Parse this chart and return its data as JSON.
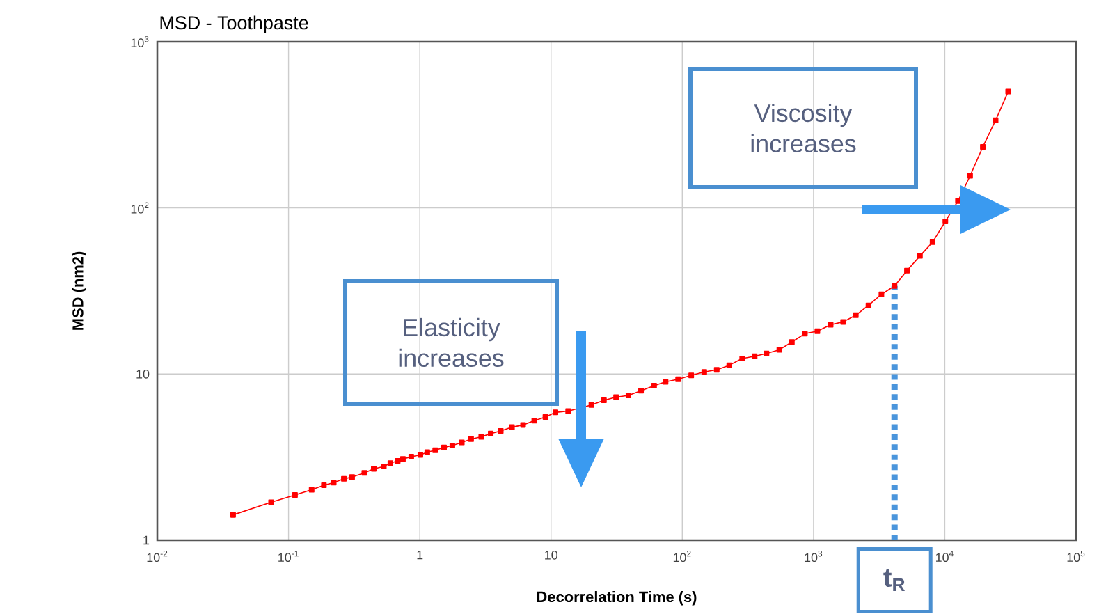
{
  "chart_data": {
    "type": "line",
    "title": "MSD - Toothpaste",
    "xlabel": "Decorrelation Time (s)",
    "ylabel": "MSD (nm2)",
    "log": "xy",
    "grid": true,
    "marker": "square",
    "line_style": "solid",
    "xlim": [
      0.01,
      100000
    ],
    "ylim": [
      1,
      1000
    ],
    "xticks": [
      {
        "value": 0.01,
        "label": "10$^{-2}$"
      },
      {
        "value": 0.1,
        "label": "10$^{-1}$"
      },
      1,
      10,
      {
        "value": 100,
        "label": "10$^{2}$"
      },
      {
        "value": 1000,
        "label": "10$^{3}$"
      },
      {
        "value": 10000,
        "label": "10$^{4}$"
      },
      {
        "value": 100000,
        "label": "10$^{5}$"
      }
    ],
    "yticks": [
      1,
      10,
      {
        "value": 100,
        "label": "10$^{2}$"
      },
      {
        "value": 1000,
        "label": "10$^{3}$"
      }
    ],
    "series": [
      {
        "color": "#ff0000",
        "x": [
          0.0378,
          0.0736,
          0.112,
          0.15,
          0.186,
          0.221,
          0.264,
          0.305,
          0.378,
          0.446,
          0.532,
          0.597,
          0.679,
          0.744,
          0.861,
          1.01,
          1.14,
          1.31,
          1.53,
          1.77,
          2.09,
          2.46,
          2.94,
          3.47,
          4.14,
          5.04,
          6.12,
          7.45,
          9.06,
          10.8,
          13.5,
          20.3,
          25.3,
          31.3,
          38.9,
          48.5,
          61.0,
          74.6,
          92.9,
          117,
          147,
          183,
          228,
          286,
          356,
          438,
          549,
          684,
          859,
          1070,
          1350,
          1680,
          2100,
          2620,
          3290,
          4140,
          5150,
          6470,
          8070,
          10100,
          12600,
          15600,
          19500,
          24400,
          30400
        ],
        "values": [
          1.42,
          1.69,
          1.87,
          2.01,
          2.14,
          2.22,
          2.34,
          2.4,
          2.54,
          2.69,
          2.78,
          2.91,
          3.0,
          3.08,
          3.18,
          3.26,
          3.39,
          3.48,
          3.62,
          3.71,
          3.88,
          4.06,
          4.19,
          4.38,
          4.55,
          4.79,
          4.94,
          5.24,
          5.52,
          5.88,
          5.99,
          6.51,
          6.95,
          7.26,
          7.44,
          7.94,
          8.51,
          8.97,
          9.31,
          9.81,
          10.3,
          10.6,
          11.3,
          12.4,
          12.8,
          13.3,
          14.0,
          15.6,
          17.5,
          18.1,
          19.8,
          20.6,
          22.6,
          25.9,
          30.2,
          33.9,
          41.9,
          51.4,
          62.2,
          83.0,
          110,
          156,
          233,
          337,
          501
        ]
      }
    ],
    "ref_lines": [
      {
        "axis": "x",
        "value": 4140,
        "label": "t$_{R}$",
        "color": "#4a95dc",
        "line_style": "dotted"
      }
    ],
    "annotations": [
      "Elasticity increases",
      "Viscosity increases"
    ]
  }
}
